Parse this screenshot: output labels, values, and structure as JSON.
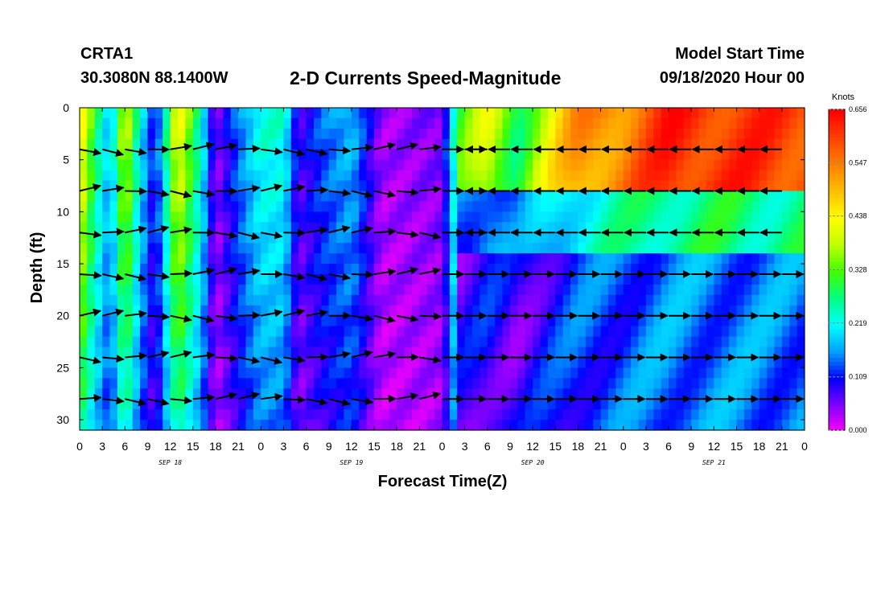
{
  "header": {
    "station": "CRTA1",
    "coordinates": "30.3080N 88.1400W",
    "title": "2-D Currents Speed-Magnitude",
    "model_start_label": "Model Start Time",
    "model_start_value": "09/18/2020 Hour 00"
  },
  "chart_data": {
    "type": "heatmap",
    "title": "2-D Currents Speed-Magnitude",
    "xlabel": "Forecast Time(Z)",
    "ylabel": "Depth (ft)",
    "x_tick_labels": [
      "0",
      "3",
      "6",
      "9",
      "12",
      "15",
      "18",
      "21",
      "0",
      "3",
      "6",
      "9",
      "12",
      "15",
      "18",
      "21",
      "0",
      "3",
      "6",
      "9",
      "12",
      "15",
      "18",
      "21",
      "0",
      "3",
      "6",
      "9",
      "12",
      "15",
      "18",
      "21",
      "0"
    ],
    "day_labels": [
      "SEP 18",
      "SEP 19",
      "SEP 20",
      "SEP 21"
    ],
    "x_range_hours": [
      0,
      96
    ],
    "y_tick_labels": [
      "0",
      "5",
      "10",
      "15",
      "20",
      "25",
      "30"
    ],
    "y_range_ft": [
      0,
      31
    ],
    "y_inverted": true,
    "depth_levels_ft": [
      4,
      8,
      12,
      16,
      20,
      24,
      28
    ],
    "colorbar": {
      "title": "Knots",
      "ticks": [
        "0.000",
        "0.109",
        "0.219",
        "0.328",
        "0.438",
        "0.547",
        "0.656"
      ],
      "range": [
        0,
        0.656
      ],
      "colors": [
        "#ff00ff",
        "#8000ff",
        "#0000ff",
        "#00a0ff",
        "#00ffff",
        "#00ff80",
        "#40ff00",
        "#c0ff00",
        "#ffff00",
        "#ffc000",
        "#ff8000",
        "#ff4000",
        "#ff0000"
      ]
    },
    "surface_speed_profile": [
      {
        "hour": 0,
        "knots": 0.47
      },
      {
        "hour": 2,
        "knots": 0.3
      },
      {
        "hour": 4,
        "knots": 0.18
      },
      {
        "hour": 6,
        "knots": 0.42
      },
      {
        "hour": 8,
        "knots": 0.22
      },
      {
        "hour": 10,
        "knots": 0.1
      },
      {
        "hour": 13,
        "knots": 0.45
      },
      {
        "hour": 16,
        "knots": 0.25
      },
      {
        "hour": 18,
        "knots": 0.05
      },
      {
        "hour": 21,
        "knots": 0.15
      },
      {
        "hour": 24,
        "knots": 0.24
      },
      {
        "hour": 27,
        "knots": 0.24
      },
      {
        "hour": 29,
        "knots": 0.08
      },
      {
        "hour": 32,
        "knots": 0.14
      },
      {
        "hour": 36,
        "knots": 0.19
      },
      {
        "hour": 40,
        "knots": 0.04
      },
      {
        "hour": 48,
        "knots": 0.06
      },
      {
        "hour": 50,
        "knots": 0.3
      },
      {
        "hour": 54,
        "knots": 0.4
      },
      {
        "hour": 58,
        "knots": 0.3
      },
      {
        "hour": 62,
        "knots": 0.42
      },
      {
        "hour": 66,
        "knots": 0.52
      },
      {
        "hour": 72,
        "knots": 0.55
      },
      {
        "hour": 78,
        "knots": 0.62
      },
      {
        "hour": 96,
        "knots": 0.6
      }
    ]
  }
}
